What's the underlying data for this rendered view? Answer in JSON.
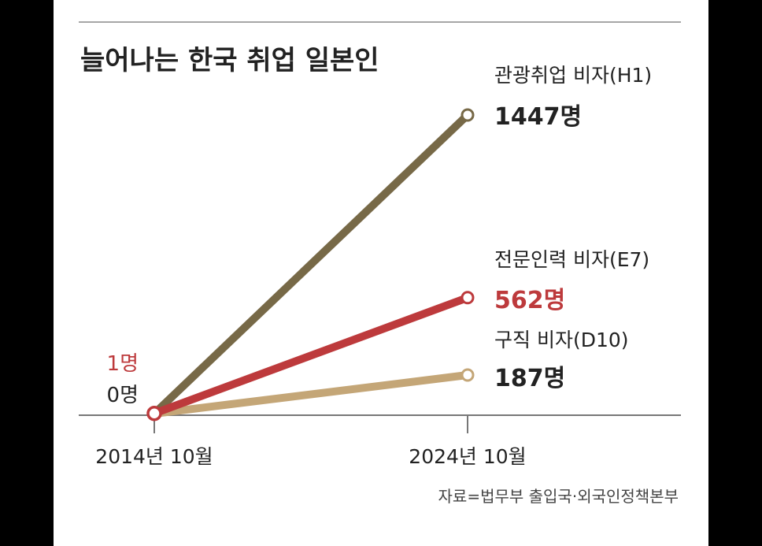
{
  "chart_data": {
    "type": "line",
    "title": "늘어나는 한국 취업 일본인",
    "x": [
      "2014년 10월",
      "2024년 10월"
    ],
    "ylim": [
      0,
      1447
    ],
    "series": [
      {
        "name": "관광취업 비자(H1)",
        "values": [
          0,
          1447
        ],
        "end_label": "1447명",
        "color": "#776947"
      },
      {
        "name": "구직 비자(D10)",
        "values": [
          0,
          187
        ],
        "end_label": "187명",
        "color": "#c4a677"
      },
      {
        "name": "전문인력 비자(E7)",
        "values": [
          1,
          562
        ],
        "end_label": "562명",
        "color": "#bd3a3c"
      }
    ],
    "start_labels": [
      {
        "text": "1명",
        "color": "#bd3a3c"
      },
      {
        "text": "0명",
        "color": "#222222"
      }
    ],
    "source": "자료=법무부 출입국·외국인정책본부"
  }
}
